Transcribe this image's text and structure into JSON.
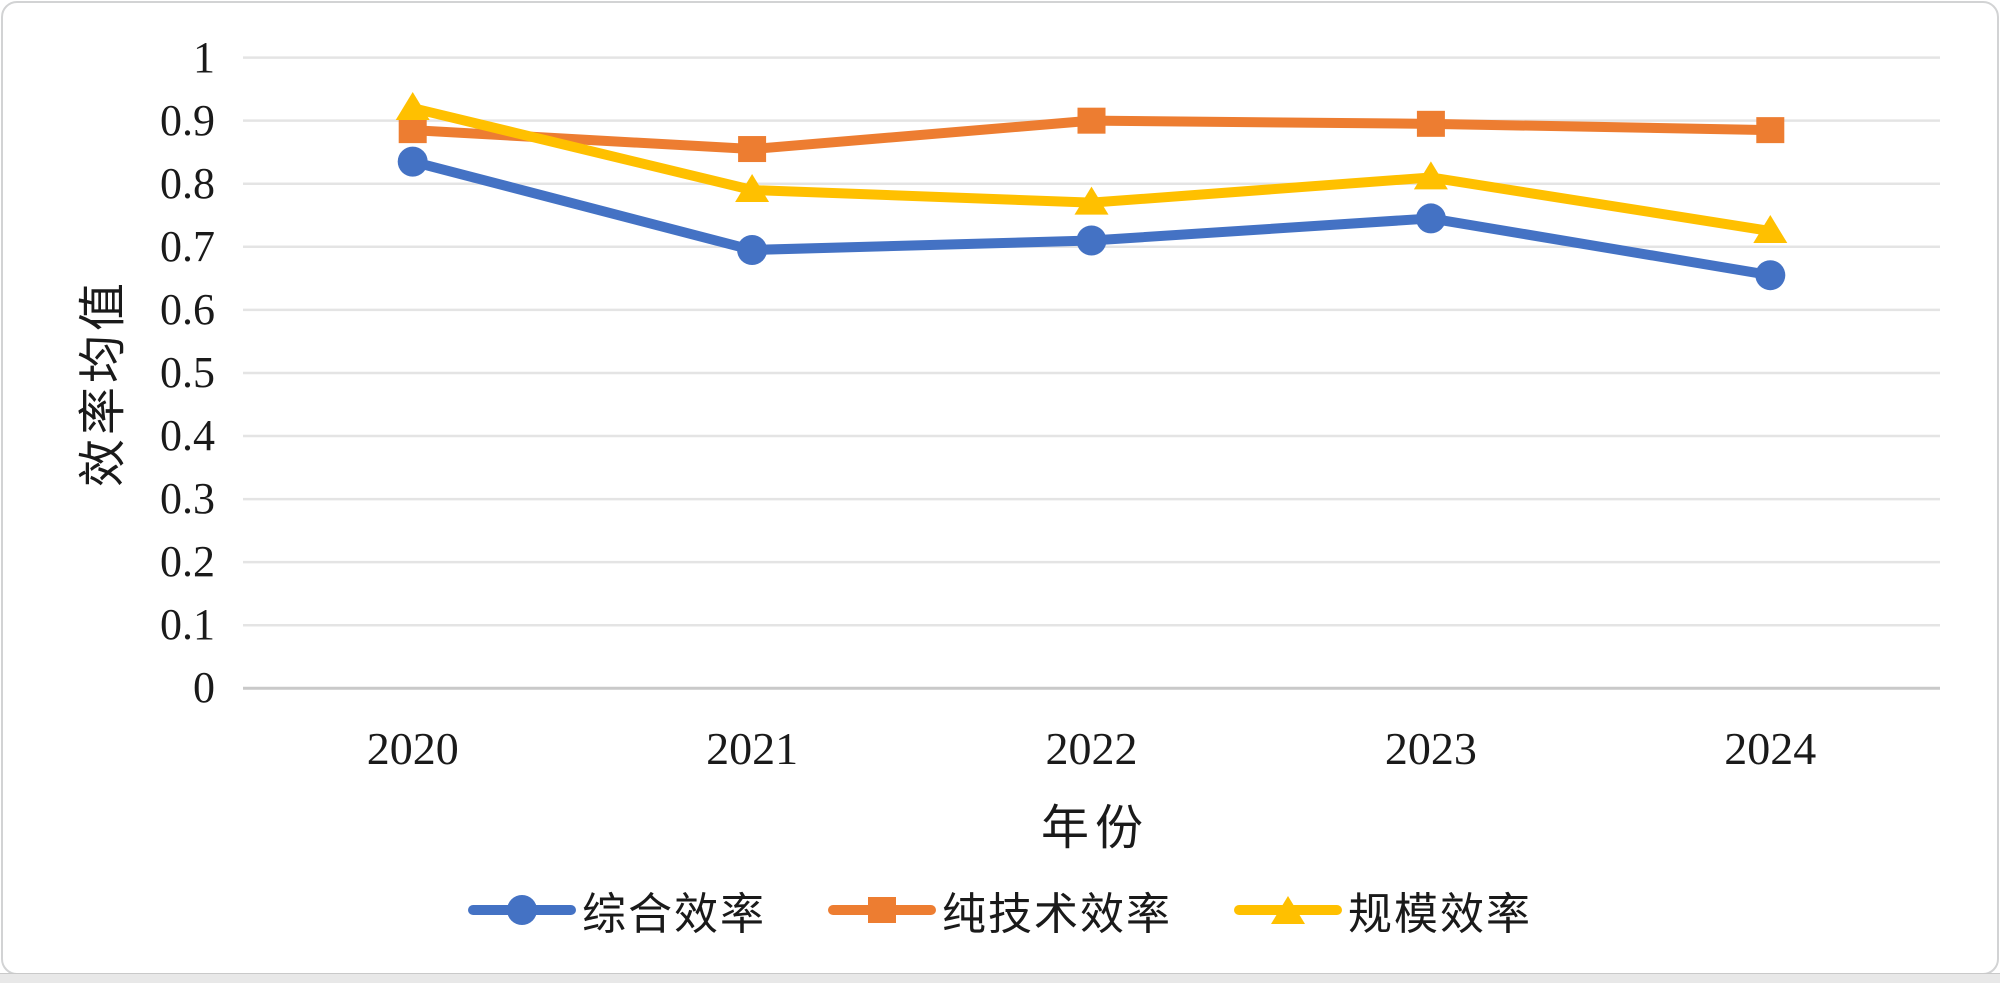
{
  "chart_data": {
    "type": "line",
    "title": "",
    "categories": [
      "2020",
      "2021",
      "2022",
      "2023",
      "2024"
    ],
    "series": [
      {
        "name": "综合效率",
        "color": "#4472C4",
        "marker": "circle",
        "values": [
          0.835,
          0.695,
          0.71,
          0.745,
          0.655
        ]
      },
      {
        "name": "纯技术效率",
        "color": "#ED7D31",
        "marker": "square",
        "values": [
          0.885,
          0.855,
          0.9,
          0.895,
          0.885
        ]
      },
      {
        "name": "规模效率",
        "color": "#FFC000",
        "marker": "triangle",
        "values": [
          0.92,
          0.79,
          0.77,
          0.81,
          0.725
        ]
      }
    ],
    "xlabel": "年份",
    "ylabel": "效率均值",
    "ylim": [
      0,
      1
    ],
    "ytick_step": 0.1,
    "yticks": [
      "1",
      "0.9",
      "0.8",
      "0.7",
      "0.6",
      "0.5",
      "0.4",
      "0.3",
      "0.2",
      "0.1",
      "0"
    ],
    "grid": true,
    "legend_position": "bottom",
    "gridline_color": "#e4e4e4",
    "axis_line_color": "#c9c9c9"
  }
}
